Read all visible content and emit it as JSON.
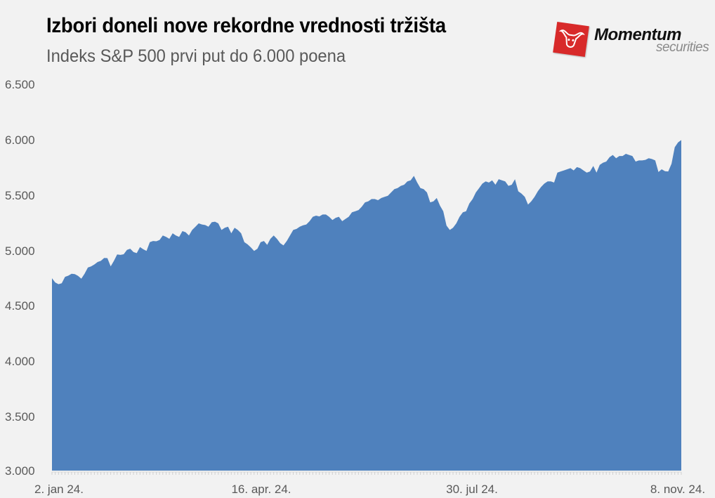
{
  "header": {
    "title": "Izbori doneli nove rekordne vrednosti tržišta",
    "subtitle": "Indeks S&P 500 prvi put do 6.000 poena"
  },
  "logo": {
    "name": "Momentum",
    "tagline": "securities",
    "brand_color": "#d82a2a"
  },
  "colors": {
    "background": "#f2f2f2",
    "series_fill": "#4f81bd",
    "axis_text": "#595959"
  },
  "chart_data": {
    "type": "area",
    "title": "Izbori doneli nove rekordne vrednosti tržišta",
    "subtitle": "Indeks S&P 500 prvi put do 6.000 poena",
    "xlabel": "",
    "ylabel": "",
    "ylim": [
      3000,
      6500
    ],
    "yticks": [
      "6.500",
      "6.000",
      "5.500",
      "5.000",
      "4.500",
      "4.000",
      "3.500",
      "3.000"
    ],
    "xticks": [
      "2. jan 24.",
      "16. apr. 24.",
      "30. jul 24.",
      "8. nov. 24."
    ],
    "grid": false,
    "legend": "none",
    "series": [
      {
        "name": "S&P 500",
        "x_range": [
          "2. jan 24.",
          "8. nov. 24."
        ],
        "values": [
          4743,
          4705,
          4689,
          4697,
          4756,
          4766,
          4783,
          4780,
          4764,
          4739,
          4783,
          4840,
          4850,
          4868,
          4890,
          4900,
          4927,
          4925,
          4850,
          4900,
          4958,
          4954,
          4960,
          5000,
          5010,
          4980,
          4970,
          5025,
          5005,
          4990,
          5070,
          5080,
          5078,
          5090,
          5130,
          5117,
          5100,
          5150,
          5130,
          5117,
          5170,
          5160,
          5130,
          5180,
          5210,
          5240,
          5230,
          5225,
          5210,
          5250,
          5255,
          5240,
          5180,
          5200,
          5210,
          5150,
          5200,
          5180,
          5150,
          5070,
          5050,
          5022,
          4990,
          5010,
          5070,
          5080,
          5045,
          5100,
          5130,
          5100,
          5060,
          5040,
          5080,
          5130,
          5180,
          5190,
          5210,
          5222,
          5230,
          5260,
          5300,
          5310,
          5303,
          5320,
          5320,
          5300,
          5270,
          5290,
          5300,
          5260,
          5280,
          5300,
          5340,
          5350,
          5360,
          5390,
          5430,
          5440,
          5460,
          5460,
          5450,
          5470,
          5480,
          5490,
          5520,
          5550,
          5560,
          5580,
          5590,
          5620,
          5630,
          5670,
          5610,
          5560,
          5550,
          5520,
          5430,
          5440,
          5470,
          5400,
          5350,
          5220,
          5180,
          5200,
          5240,
          5300,
          5340,
          5350,
          5420,
          5460,
          5520,
          5560,
          5600,
          5620,
          5610,
          5630,
          5590,
          5640,
          5630,
          5620,
          5580,
          5590,
          5640,
          5530,
          5510,
          5480,
          5410,
          5440,
          5480,
          5530,
          5570,
          5600,
          5620,
          5620,
          5610,
          5700,
          5710,
          5720,
          5730,
          5740,
          5720,
          5750,
          5740,
          5720,
          5700,
          5710,
          5760,
          5700,
          5770,
          5790,
          5800,
          5840,
          5860,
          5830,
          5850,
          5850,
          5870,
          5860,
          5850,
          5800,
          5810,
          5810,
          5815,
          5830,
          5823,
          5810,
          5705,
          5730,
          5712,
          5710,
          5780,
          5930,
          5973,
          5995
        ]
      }
    ]
  }
}
